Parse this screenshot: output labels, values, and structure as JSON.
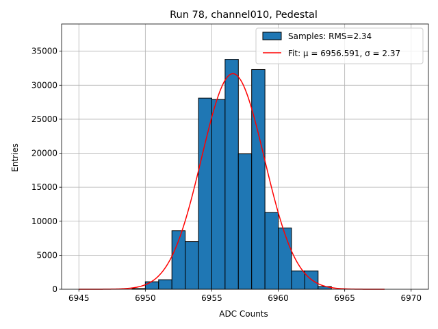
{
  "chart_data": {
    "type": "bar",
    "title": "Run 78, channel010, Pedestal",
    "xlabel": "ADC Counts",
    "ylabel": "Entries",
    "xlim": [
      6943.7,
      6971.3
    ],
    "ylim": [
      0,
      39000
    ],
    "grid": true,
    "legend_position": "upper right",
    "xticks": [
      6945,
      6950,
      6955,
      6960,
      6965,
      6970
    ],
    "yticks": [
      0,
      5000,
      10000,
      15000,
      20000,
      25000,
      30000,
      35000
    ],
    "series": [
      {
        "name": "Samples: RMS=2.34",
        "kind": "histogram",
        "color": "#1f77b4",
        "edgecolor": "#000000",
        "bin_width": 1,
        "bin_starts": [
          6949,
          6950,
          6951,
          6952,
          6953,
          6954,
          6955,
          6956,
          6957,
          6958,
          6959,
          6960,
          6961,
          6962,
          6963
        ],
        "values": [
          100,
          1100,
          1400,
          8600,
          7000,
          28100,
          27900,
          33800,
          19900,
          32300,
          11300,
          9000,
          2700,
          2700,
          400
        ]
      },
      {
        "name": "Fit: μ = 6956.591, σ = 2.37",
        "kind": "gaussian_fit",
        "color": "#ff0000",
        "mu": 6956.591,
        "sigma": 2.37,
        "amplitude": 31700,
        "x_range": [
          6945,
          6968
        ]
      }
    ]
  }
}
